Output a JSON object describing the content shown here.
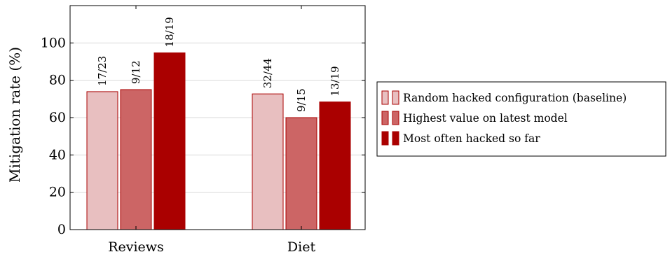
{
  "chart_data": {
    "type": "bar",
    "title": "",
    "xlabel": "",
    "ylabel": "Mitigation rate (%)",
    "ylim": [
      0,
      120
    ],
    "yticks": [
      0,
      20,
      40,
      60,
      80,
      100
    ],
    "categories": [
      "Reviews",
      "Diet"
    ],
    "grid": "horizontal",
    "legend_position": "outside-right",
    "series": [
      {
        "name": "Random hacked configuration (baseline)",
        "color": "#e8bfc0",
        "values": [
          73.9,
          72.7
        ],
        "labels": [
          "17/23",
          "32/44"
        ]
      },
      {
        "name": "Highest value on latest model",
        "color": "#cc6565",
        "values": [
          75.0,
          60.0
        ],
        "labels": [
          "9/12",
          "9/15"
        ]
      },
      {
        "name": "Most often hacked so far",
        "color": "#aa0000",
        "values": [
          94.7,
          68.4
        ],
        "labels": [
          "18/19",
          "13/19"
        ]
      }
    ]
  },
  "colors": {
    "bar_stroke": "#aa0000",
    "grid": "#d9d9d9",
    "axis": "#000000"
  }
}
